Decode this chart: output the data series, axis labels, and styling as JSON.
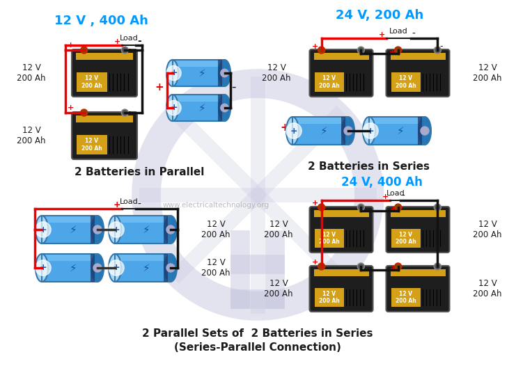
{
  "bg_color": "#ffffff",
  "watermark": "www.electricaltechnology.org",
  "top_left_label": "12 V , 400 Ah",
  "top_right_label": "24 V, 200 Ah",
  "bottom_right_label": "24 V, 400 Ah",
  "parallel_label": "2 Batteries in Parallel",
  "series_label": "2 Batteries in Series",
  "series_parallel_label": "2 Parallel Sets of  2 Batteries in Series",
  "series_parallel_sublabel": "(Series-Parallel Connection)",
  "dark_color": "#1a1a1a",
  "label_color": "#0099ff",
  "battery_label_small": "12 V\n200 Ah",
  "bat_gold": "#d4a017",
  "bat_dark": "#1e1e1e",
  "bat_blue_light": "#7cc8f8",
  "bat_blue_mid": "#4da6e8",
  "bat_blue_dark": "#2277bb",
  "bat_teal": "#3399aa",
  "wire_red": "#ee0000",
  "wire_black": "#111111",
  "spoke_color": "#c8c8e0",
  "spoke_alpha": 0.5
}
